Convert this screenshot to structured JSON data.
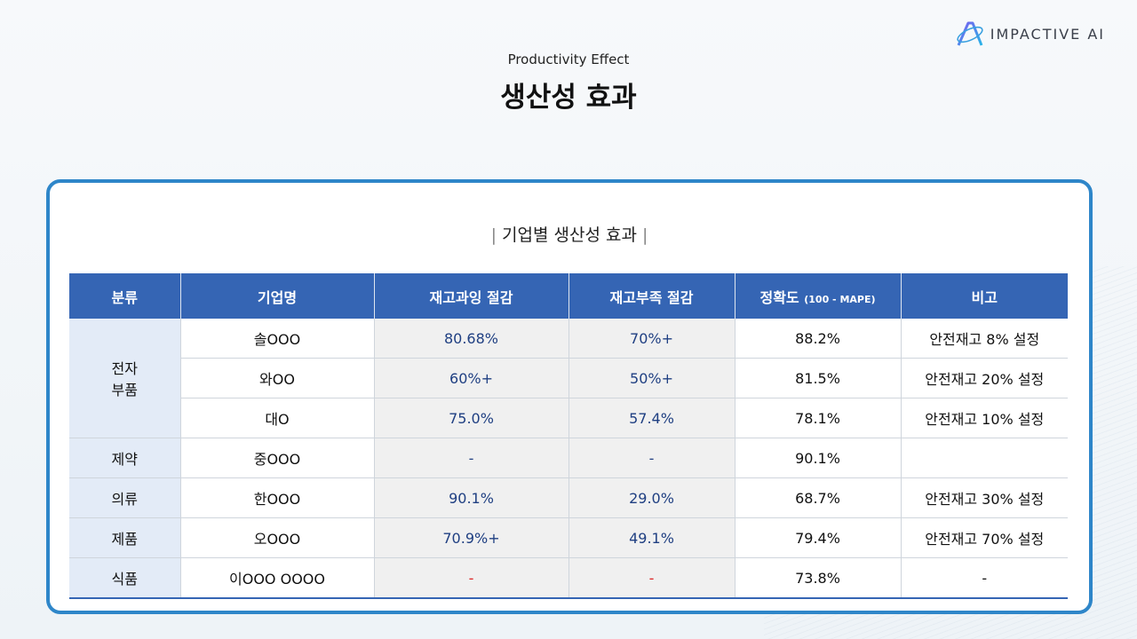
{
  "brand": {
    "name": "IMPACTIVE AI"
  },
  "header": {
    "subtitle": "Productivity Effect",
    "title": "생산성 효과"
  },
  "section": {
    "title": "기업별 생산성 효과",
    "bar": "|"
  },
  "table": {
    "headers": {
      "category": "분류",
      "company": "기업명",
      "overstock": "재고과잉 절감",
      "shortage": "재고부족 절감",
      "accuracy": "정확도",
      "accuracy_note": "(100 - MAPE)",
      "remarks": "비고"
    },
    "rows": [
      {
        "category": "전자 부품",
        "company": "솔OOO",
        "overstock": "80.68%",
        "shortage": "70%+",
        "accuracy": "88.2%",
        "remarks": "안전재고 8% 설정"
      },
      {
        "company": "와OO",
        "overstock": "60%+",
        "shortage": "50%+",
        "accuracy": "81.5%",
        "remarks": "안전재고 20% 설정"
      },
      {
        "company": "대O",
        "overstock": "75.0%",
        "shortage": "57.4%",
        "accuracy": "78.1%",
        "remarks": "안전재고 10% 설정"
      },
      {
        "category": "제약",
        "company": "중OOO",
        "overstock": "-",
        "shortage": "-",
        "accuracy": "90.1%",
        "remarks": ""
      },
      {
        "category": "의류",
        "company": "한OOO",
        "overstock": "90.1%",
        "shortage": "29.0%",
        "accuracy": "68.7%",
        "remarks": "안전재고 30% 설정"
      },
      {
        "category": "제품",
        "company": "오OOO",
        "overstock": "70.9%+",
        "shortage": "49.1%",
        "accuracy": "79.4%",
        "remarks": "안전재고 70% 설정"
      },
      {
        "category": "식품",
        "company": "이OOO OOOO",
        "overstock": "-",
        "shortage": "-",
        "accuracy": "73.8%",
        "remarks": "-"
      }
    ]
  },
  "colors": {
    "header_bg": "#3565b4",
    "card_border": "#2e86c9",
    "value_text": "#1f3f82",
    "dash_red": "#dd2222"
  }
}
